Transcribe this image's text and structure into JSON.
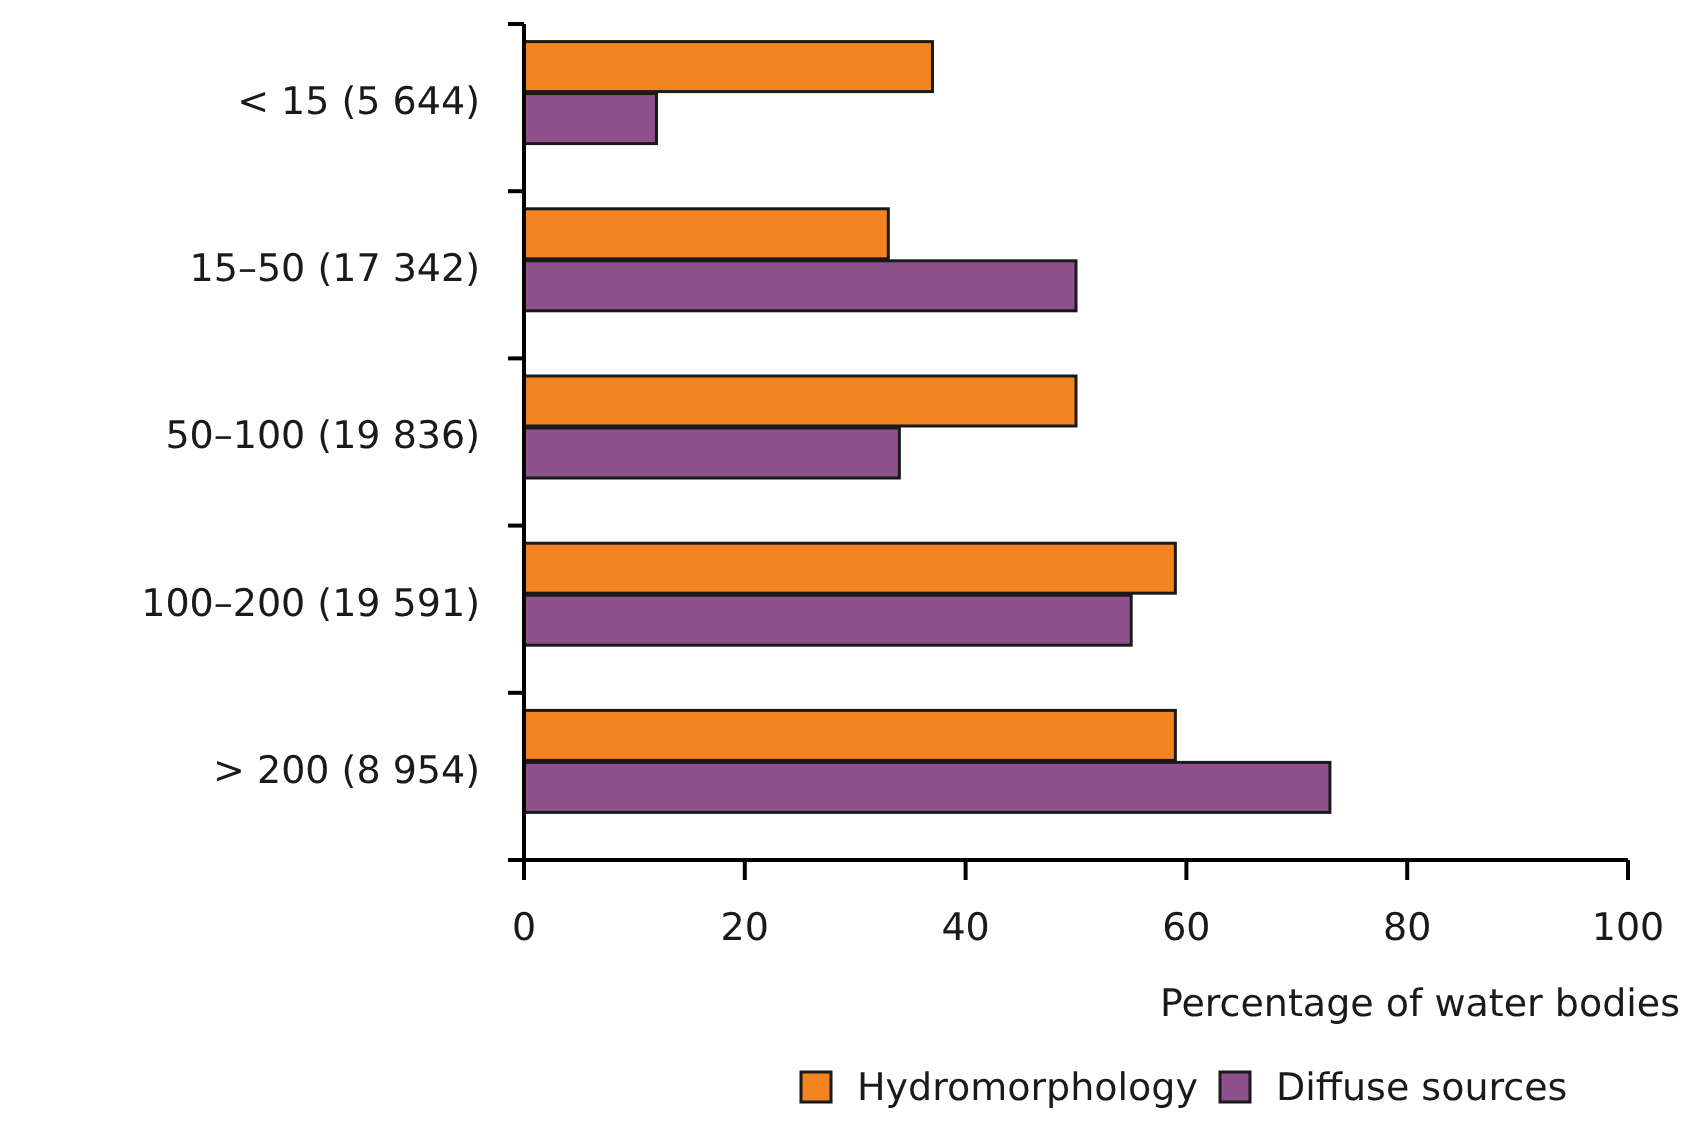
{
  "chart_data": {
    "type": "bar",
    "orientation": "horizontal",
    "xlabel": "Percentage of water bodies",
    "categories": [
      "< 15 (5 644)",
      "15–50 (17 342)",
      "50–100 (19 836)",
      "100–200 (19 591)",
      "> 200 (8 954)"
    ],
    "series": [
      {
        "name": "Hydromorphology",
        "color": "#f28522",
        "values": [
          37,
          33,
          50,
          59,
          59
        ]
      },
      {
        "name": "Diffuse sources",
        "color": "#8e518b",
        "values": [
          12,
          50,
          34,
          55,
          73
        ]
      }
    ],
    "xlim": [
      0,
      100
    ],
    "xticks": [
      0,
      20,
      40,
      60,
      80,
      100
    ],
    "grid": false,
    "legend": "bottom"
  }
}
